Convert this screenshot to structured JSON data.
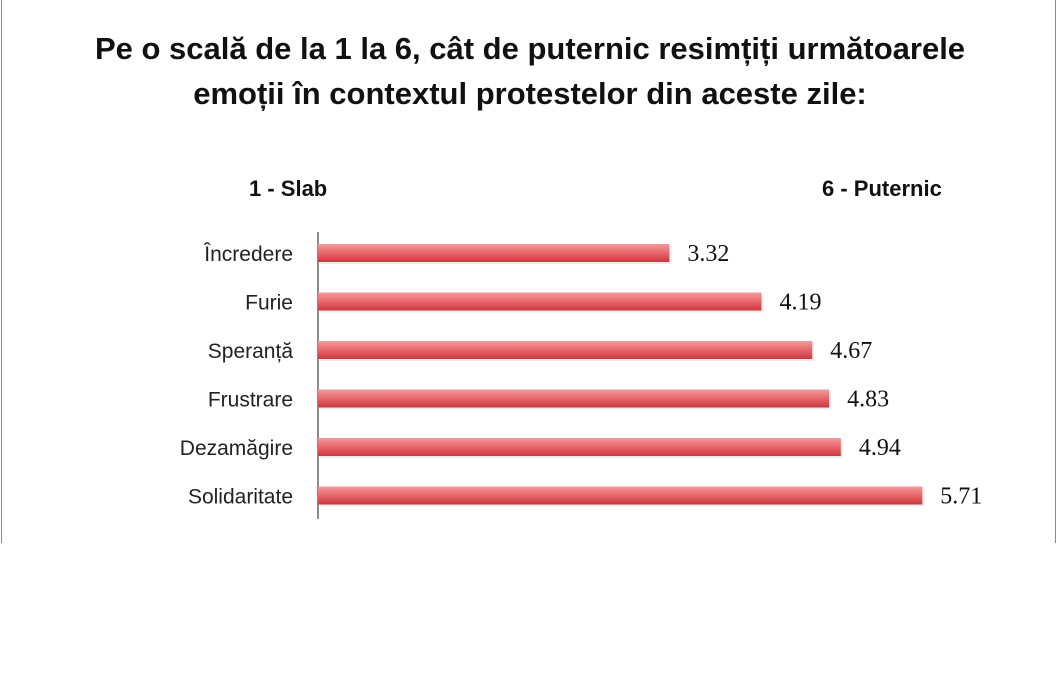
{
  "chart_data": {
    "type": "bar",
    "orientation": "horizontal",
    "title": "Pe o scală de la 1 la 6, cât de puternic resimțiți următoarele emoții în contextul protestelor din aceste zile:",
    "scale_low_label": "1 - Slab",
    "scale_high_label": "6 - Puternic",
    "categories": [
      "Încredere",
      "Furie",
      "Speranță",
      "Frustrare",
      "Dezamăgire",
      "Solidaritate"
    ],
    "values": [
      3.32,
      4.19,
      4.67,
      4.83,
      4.94,
      5.71
    ],
    "value_labels": [
      "3.32",
      "4.19",
      "4.67",
      "4.83",
      "4.94",
      "5.71"
    ],
    "xlim": [
      0,
      6
    ],
    "grid": false,
    "legend": "none",
    "bar_color": "#e85a5f"
  }
}
